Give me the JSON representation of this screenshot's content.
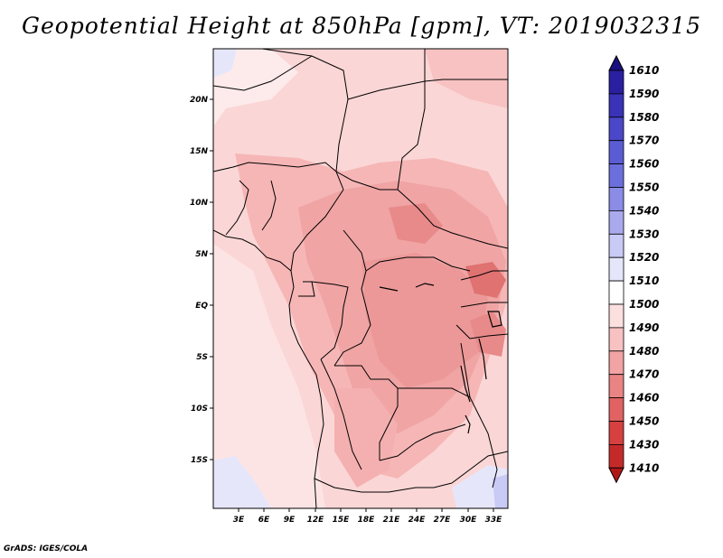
{
  "title": "Geopotential Height at 850hPa [gpm], VT: 2019032315",
  "credit": "GrADS: IGES/COLA",
  "map": {
    "lat_labels": [
      "20N",
      "15N",
      "10N",
      "5N",
      "EQ",
      "5S",
      "10S",
      "15S"
    ],
    "lon_labels": [
      "3E",
      "6E",
      "9E",
      "12E",
      "15E",
      "18E",
      "21E",
      "24E",
      "27E",
      "30E",
      "33E"
    ]
  },
  "colorbar": {
    "levels": [
      "1610",
      "1590",
      "1580",
      "1570",
      "1560",
      "1550",
      "1540",
      "1530",
      "1520",
      "1510",
      "1500",
      "1490",
      "1480",
      "1470",
      "1460",
      "1450",
      "1430",
      "1410"
    ],
    "colors": [
      "#1a1080",
      "#2a1fa0",
      "#3a33b8",
      "#4a47c8",
      "#5a5cd4",
      "#6b6fdc",
      "#8a8ce6",
      "#a9aaee",
      "#c9caf5",
      "#e6e6fb",
      "#ffffff",
      "#fce0e0",
      "#f8c2c2",
      "#f2a3a3",
      "#ea8484",
      "#e06262",
      "#d64040",
      "#c42a2a",
      "#b01818"
    ]
  }
}
